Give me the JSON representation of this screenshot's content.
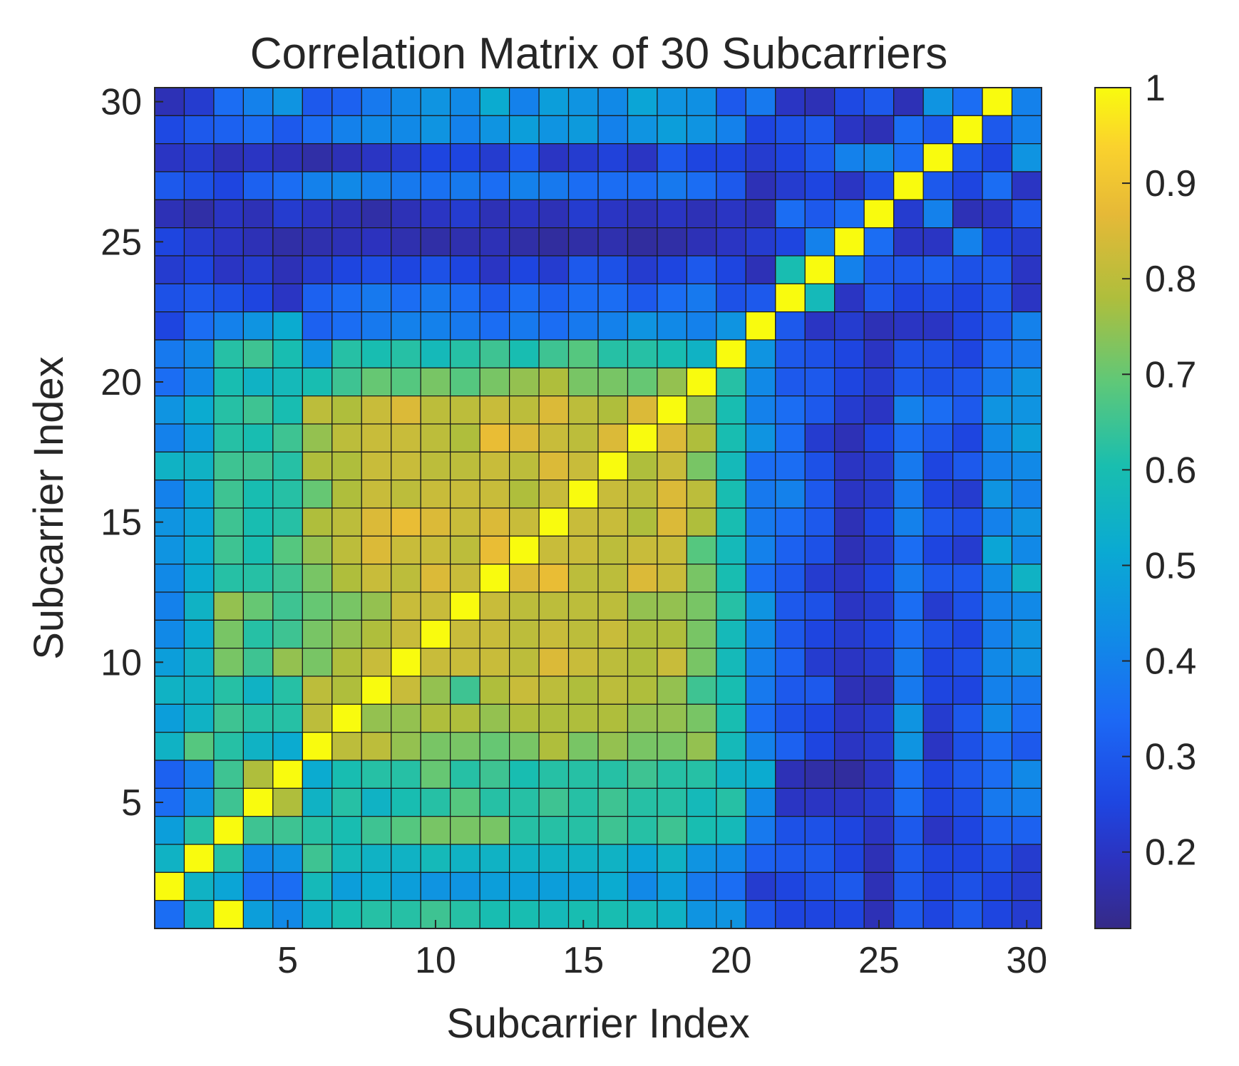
{
  "chart_data": {
    "type": "heatmap",
    "title": "Correlation Matrix of 30 Subcarriers",
    "xlabel": "Subcarrier Index",
    "ylabel": "Subcarrier Index",
    "xlim": [
      0.5,
      30.5
    ],
    "ylim": [
      0.5,
      30.5
    ],
    "x_ticks": [
      5,
      10,
      15,
      20,
      25,
      30
    ],
    "y_ticks": [
      5,
      10,
      15,
      20,
      25,
      30
    ],
    "colorbar": {
      "colormap": "parula",
      "range": [
        0.12,
        1
      ],
      "ticks": [
        0.2,
        0.3,
        0.4,
        0.5,
        0.6,
        0.7,
        0.8,
        0.9,
        1
      ],
      "tick_labels": [
        "0.2",
        "0.3",
        "0.4",
        "0.5",
        "0.6",
        "0.7",
        "0.8",
        "0.9",
        "1"
      ]
    },
    "rows_top_to_bottom": [
      [
        0.18,
        0.22,
        0.35,
        0.4,
        0.45,
        0.3,
        0.32,
        0.38,
        0.42,
        0.45,
        0.42,
        0.52,
        0.4,
        0.48,
        0.45,
        0.42,
        0.5,
        0.45,
        0.44,
        0.3,
        0.38,
        0.2,
        0.18,
        0.26,
        0.3,
        0.18,
        0.45,
        0.35,
        1,
        0.4
      ],
      [
        0.26,
        0.3,
        0.32,
        0.35,
        0.3,
        0.35,
        0.4,
        0.42,
        0.42,
        0.45,
        0.4,
        0.45,
        0.48,
        0.45,
        0.47,
        0.4,
        0.45,
        0.48,
        0.45,
        0.4,
        0.25,
        0.28,
        0.3,
        0.2,
        0.18,
        0.35,
        0.3,
        1,
        0.3,
        0.4
      ],
      [
        0.2,
        0.22,
        0.18,
        0.2,
        0.18,
        0.16,
        0.18,
        0.2,
        0.22,
        0.25,
        0.25,
        0.22,
        0.3,
        0.2,
        0.22,
        0.24,
        0.2,
        0.3,
        0.25,
        0.25,
        0.22,
        0.25,
        0.3,
        0.4,
        0.42,
        0.35,
        1,
        0.3,
        0.25,
        0.45
      ],
      [
        0.3,
        0.28,
        0.25,
        0.32,
        0.35,
        0.4,
        0.42,
        0.4,
        0.38,
        0.36,
        0.38,
        0.35,
        0.4,
        0.38,
        0.35,
        0.35,
        0.35,
        0.38,
        0.35,
        0.3,
        0.18,
        0.22,
        0.25,
        0.2,
        0.28,
        1,
        0.3,
        0.25,
        0.35,
        0.2
      ],
      [
        0.18,
        0.16,
        0.2,
        0.18,
        0.22,
        0.2,
        0.18,
        0.16,
        0.18,
        0.2,
        0.22,
        0.18,
        0.2,
        0.18,
        0.22,
        0.2,
        0.18,
        0.2,
        0.18,
        0.2,
        0.18,
        0.35,
        0.3,
        0.35,
        1,
        0.22,
        0.4,
        0.18,
        0.2,
        0.3
      ],
      [
        0.25,
        0.22,
        0.2,
        0.18,
        0.16,
        0.17,
        0.18,
        0.19,
        0.17,
        0.16,
        0.17,
        0.18,
        0.16,
        0.15,
        0.16,
        0.17,
        0.15,
        0.16,
        0.18,
        0.2,
        0.22,
        0.25,
        0.4,
        1,
        0.35,
        0.2,
        0.2,
        0.4,
        0.25,
        0.22
      ],
      [
        0.22,
        0.25,
        0.2,
        0.22,
        0.18,
        0.22,
        0.25,
        0.27,
        0.25,
        0.28,
        0.25,
        0.2,
        0.25,
        0.22,
        0.3,
        0.28,
        0.22,
        0.25,
        0.3,
        0.25,
        0.18,
        0.6,
        1,
        0.4,
        0.3,
        0.3,
        0.32,
        0.28,
        0.3,
        0.2
      ],
      [
        0.28,
        0.3,
        0.28,
        0.25,
        0.2,
        0.32,
        0.35,
        0.38,
        0.35,
        0.38,
        0.35,
        0.3,
        0.35,
        0.32,
        0.35,
        0.35,
        0.3,
        0.35,
        0.38,
        0.28,
        0.3,
        1,
        0.58,
        0.2,
        0.3,
        0.25,
        0.27,
        0.25,
        0.3,
        0.2
      ],
      [
        0.25,
        0.35,
        0.4,
        0.45,
        0.52,
        0.32,
        0.35,
        0.38,
        0.4,
        0.4,
        0.38,
        0.35,
        0.38,
        0.35,
        0.38,
        0.4,
        0.45,
        0.42,
        0.4,
        0.45,
        1,
        0.3,
        0.2,
        0.22,
        0.18,
        0.2,
        0.2,
        0.25,
        0.3,
        0.4
      ],
      [
        0.38,
        0.42,
        0.62,
        0.65,
        0.6,
        0.45,
        0.62,
        0.6,
        0.62,
        0.58,
        0.62,
        0.65,
        0.6,
        0.65,
        0.68,
        0.62,
        0.62,
        0.6,
        0.55,
        1,
        0.45,
        0.3,
        0.28,
        0.25,
        0.2,
        0.28,
        0.28,
        0.25,
        0.35,
        0.38
      ],
      [
        0.35,
        0.42,
        0.6,
        0.55,
        0.58,
        0.6,
        0.65,
        0.7,
        0.68,
        0.72,
        0.68,
        0.72,
        0.75,
        0.78,
        0.72,
        0.72,
        0.7,
        0.75,
        1,
        0.62,
        0.42,
        0.3,
        0.3,
        0.25,
        0.22,
        0.3,
        0.28,
        0.3,
        0.38,
        0.45
      ],
      [
        0.45,
        0.52,
        0.62,
        0.65,
        0.6,
        0.8,
        0.78,
        0.82,
        0.85,
        0.8,
        0.8,
        0.82,
        0.8,
        0.85,
        0.8,
        0.78,
        0.85,
        1,
        0.75,
        0.6,
        0.4,
        0.35,
        0.3,
        0.22,
        0.2,
        0.4,
        0.35,
        0.3,
        0.45,
        0.45
      ],
      [
        0.4,
        0.48,
        0.62,
        0.6,
        0.65,
        0.75,
        0.8,
        0.82,
        0.82,
        0.8,
        0.78,
        0.88,
        0.85,
        0.82,
        0.8,
        0.85,
        1,
        0.85,
        0.78,
        0.6,
        0.45,
        0.35,
        0.22,
        0.18,
        0.25,
        0.35,
        0.3,
        0.25,
        0.42,
        0.48
      ],
      [
        0.55,
        0.55,
        0.65,
        0.65,
        0.62,
        0.78,
        0.78,
        0.82,
        0.82,
        0.8,
        0.8,
        0.82,
        0.8,
        0.85,
        0.82,
        1,
        0.78,
        0.82,
        0.72,
        0.58,
        0.35,
        0.35,
        0.28,
        0.2,
        0.22,
        0.38,
        0.25,
        0.3,
        0.4,
        0.42
      ],
      [
        0.4,
        0.5,
        0.65,
        0.6,
        0.62,
        0.7,
        0.78,
        0.82,
        0.8,
        0.82,
        0.82,
        0.82,
        0.78,
        0.82,
        1,
        0.82,
        0.8,
        0.85,
        0.8,
        0.6,
        0.38,
        0.4,
        0.3,
        0.2,
        0.22,
        0.38,
        0.25,
        0.22,
        0.45,
        0.4
      ],
      [
        0.45,
        0.5,
        0.65,
        0.6,
        0.62,
        0.78,
        0.8,
        0.85,
        0.88,
        0.85,
        0.82,
        0.85,
        0.82,
        1,
        0.82,
        0.82,
        0.78,
        0.85,
        0.78,
        0.6,
        0.38,
        0.35,
        0.3,
        0.18,
        0.25,
        0.4,
        0.3,
        0.28,
        0.4,
        0.45
      ],
      [
        0.45,
        0.52,
        0.65,
        0.6,
        0.68,
        0.75,
        0.8,
        0.85,
        0.82,
        0.82,
        0.8,
        0.88,
        1,
        0.82,
        0.82,
        0.8,
        0.82,
        0.82,
        0.68,
        0.58,
        0.4,
        0.32,
        0.28,
        0.18,
        0.22,
        0.35,
        0.25,
        0.22,
        0.5,
        0.42
      ],
      [
        0.42,
        0.52,
        0.62,
        0.62,
        0.65,
        0.72,
        0.78,
        0.82,
        0.8,
        0.85,
        0.82,
        1,
        0.85,
        0.88,
        0.8,
        0.8,
        0.85,
        0.82,
        0.72,
        0.6,
        0.35,
        0.3,
        0.22,
        0.2,
        0.25,
        0.38,
        0.3,
        0.3,
        0.42,
        0.55
      ],
      [
        0.4,
        0.55,
        0.75,
        0.7,
        0.65,
        0.7,
        0.72,
        0.75,
        0.82,
        0.82,
        1,
        0.82,
        0.8,
        0.8,
        0.8,
        0.8,
        0.75,
        0.75,
        0.72,
        0.62,
        0.45,
        0.3,
        0.28,
        0.2,
        0.22,
        0.35,
        0.22,
        0.28,
        0.4,
        0.42
      ],
      [
        0.42,
        0.52,
        0.72,
        0.62,
        0.65,
        0.72,
        0.75,
        0.78,
        0.82,
        1,
        0.82,
        0.82,
        0.8,
        0.82,
        0.8,
        0.82,
        0.78,
        0.78,
        0.72,
        0.58,
        0.42,
        0.3,
        0.25,
        0.22,
        0.25,
        0.35,
        0.28,
        0.25,
        0.4,
        0.45
      ],
      [
        0.48,
        0.55,
        0.72,
        0.65,
        0.75,
        0.72,
        0.78,
        0.82,
        1,
        0.82,
        0.82,
        0.82,
        0.8,
        0.85,
        0.82,
        0.8,
        0.78,
        0.82,
        0.72,
        0.58,
        0.4,
        0.32,
        0.22,
        0.2,
        0.22,
        0.38,
        0.25,
        0.28,
        0.42,
        0.45
      ],
      [
        0.55,
        0.55,
        0.62,
        0.55,
        0.62,
        0.8,
        0.78,
        1,
        0.82,
        0.75,
        0.65,
        0.78,
        0.82,
        0.8,
        0.78,
        0.8,
        0.78,
        0.75,
        0.65,
        0.6,
        0.38,
        0.3,
        0.3,
        0.18,
        0.18,
        0.38,
        0.25,
        0.25,
        0.4,
        0.38
      ],
      [
        0.48,
        0.55,
        0.65,
        0.62,
        0.62,
        0.8,
        1,
        0.75,
        0.75,
        0.78,
        0.78,
        0.75,
        0.78,
        0.78,
        0.78,
        0.78,
        0.75,
        0.75,
        0.72,
        0.6,
        0.35,
        0.28,
        0.25,
        0.2,
        0.22,
        0.45,
        0.22,
        0.3,
        0.42,
        0.35
      ],
      [
        0.55,
        0.68,
        0.62,
        0.55,
        0.52,
        1,
        0.8,
        0.8,
        0.75,
        0.72,
        0.72,
        0.7,
        0.72,
        0.78,
        0.72,
        0.75,
        0.72,
        0.72,
        0.75,
        0.58,
        0.4,
        0.32,
        0.25,
        0.2,
        0.22,
        0.45,
        0.2,
        0.28,
        0.35,
        0.3
      ],
      [
        0.32,
        0.4,
        0.65,
        0.78,
        1,
        0.52,
        0.6,
        0.62,
        0.62,
        0.7,
        0.62,
        0.65,
        0.6,
        0.62,
        0.62,
        0.62,
        0.65,
        0.62,
        0.62,
        0.55,
        0.52,
        0.18,
        0.16,
        0.15,
        0.2,
        0.35,
        0.25,
        0.3,
        0.35,
        0.42
      ],
      [
        0.35,
        0.45,
        0.65,
        1,
        0.78,
        0.55,
        0.62,
        0.55,
        0.6,
        0.62,
        0.68,
        0.62,
        0.62,
        0.65,
        0.62,
        0.65,
        0.62,
        0.62,
        0.58,
        0.62,
        0.42,
        0.2,
        0.2,
        0.2,
        0.22,
        0.35,
        0.25,
        0.28,
        0.38,
        0.4
      ],
      [
        0.48,
        0.62,
        1,
        0.65,
        0.65,
        0.62,
        0.6,
        0.65,
        0.68,
        0.72,
        0.72,
        0.72,
        0.62,
        0.62,
        0.62,
        0.65,
        0.62,
        0.65,
        0.6,
        0.58,
        0.38,
        0.28,
        0.28,
        0.25,
        0.2,
        0.3,
        0.2,
        0.25,
        0.32,
        0.32
      ],
      [
        0.55,
        1,
        0.62,
        0.42,
        0.45,
        0.65,
        0.58,
        0.55,
        0.55,
        0.58,
        0.55,
        0.55,
        0.55,
        0.55,
        0.55,
        0.55,
        0.5,
        0.55,
        0.45,
        0.42,
        0.32,
        0.3,
        0.3,
        0.25,
        0.18,
        0.3,
        0.25,
        0.25,
        0.28,
        0.22
      ],
      [
        1,
        0.55,
        0.5,
        0.35,
        0.35,
        0.58,
        0.48,
        0.52,
        0.48,
        0.45,
        0.45,
        0.48,
        0.48,
        0.48,
        0.48,
        0.52,
        0.42,
        0.48,
        0.38,
        0.35,
        0.22,
        0.25,
        0.28,
        0.3,
        0.18,
        0.3,
        0.25,
        0.28,
        0.25,
        0.22
      ],
      [
        0.35,
        0.55,
        1,
        0.48,
        0.42,
        0.55,
        0.6,
        0.62,
        0.62,
        0.65,
        0.62,
        0.6,
        0.6,
        0.58,
        0.6,
        0.6,
        0.58,
        0.55,
        0.45,
        0.45,
        0.3,
        0.25,
        0.25,
        0.25,
        0.18,
        0.3,
        0.25,
        0.3,
        0.25,
        0.22
      ]
    ]
  }
}
